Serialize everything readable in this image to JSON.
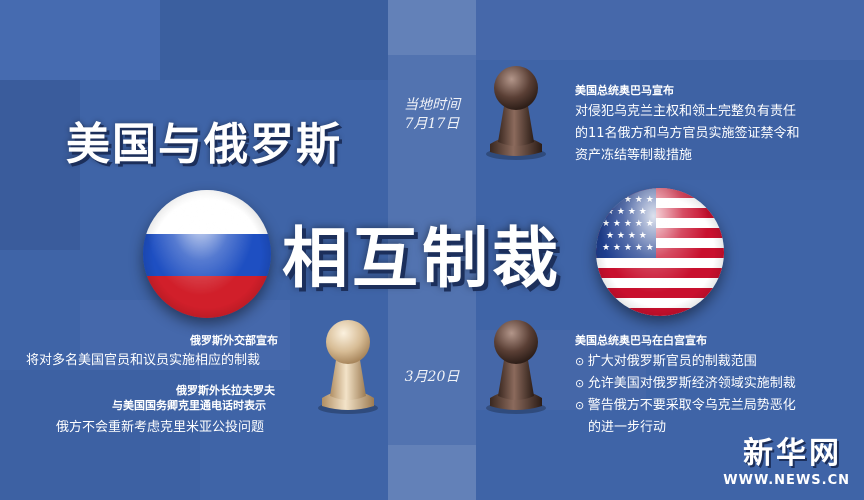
{
  "title": {
    "line1": "美国与俄罗斯",
    "line2": "相互制裁"
  },
  "timeline": {
    "label": "当地时间",
    "dates": [
      "7月17日",
      "3月20日"
    ]
  },
  "events": {
    "us_obama_jul17": {
      "heading": "美国总统奥巴马宣布",
      "lines": [
        "对侵犯乌克兰主权和领土完整负有责任",
        "的11名俄方和乌方官员实施签证禁令和",
        "资产冻结等制裁措施"
      ]
    },
    "russia_mfa": {
      "heading": "俄罗斯外交部宣布",
      "body": "将对多名美国官员和议员实施相应的制裁"
    },
    "lavrov_call": {
      "heading1": "俄罗斯外长拉夫罗夫",
      "heading2": "与美国国务卿克里通电话时表示",
      "body": "俄方不会重新考虑克里米亚公投问题"
    },
    "us_obama_whitehouse": {
      "heading": "美国总统奥巴马在白宫宣布",
      "bullets": [
        "扩大对俄罗斯官员的制裁范围",
        "允许美国对俄罗斯经济领域实施制裁",
        "警告俄方不要采取令乌克兰局势恶化"
      ],
      "continuation": "的进一步行动"
    }
  },
  "logo": {
    "name": "新华网",
    "url": "WWW.NEWS.CN"
  },
  "colors": {
    "background": "#3f64a7",
    "text": "#ffffff",
    "russia_white": "#ffffff",
    "russia_blue": "#1e4fc2",
    "russia_red": "#d11f2a",
    "us_red": "#c8102e",
    "us_blue": "#1f3f8f"
  }
}
